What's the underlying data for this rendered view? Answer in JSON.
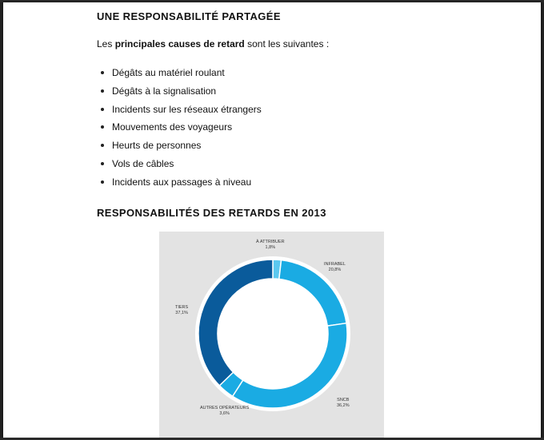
{
  "section1": {
    "title": "UNE RESPONSABILITÉ PARTAGÉE",
    "intro_before": "Les ",
    "intro_bold": "principales causes de retard",
    "intro_after": " sont les suivantes :",
    "bullets": [
      "Dégâts au matériel roulant",
      "Dégâts à la signalisation",
      "Incidents sur les réseaux étrangers",
      "Mouvements des voyageurs",
      "Heurts de personnes",
      "Vols de câbles",
      "Incidents aux passages à niveau"
    ]
  },
  "section2": {
    "title": "RESPONSABILITÉS DES RETARDS EN 2013"
  },
  "chart_data": {
    "type": "pie",
    "style": "donut",
    "title": "RESPONSABILITÉS DES RETARDS EN 2013",
    "slices": [
      {
        "label": "À ATTRIBUER",
        "value": 1.8,
        "value_label": "1,8%",
        "color": "#5bc8ef"
      },
      {
        "label": "INFRABEL",
        "value": 20.8,
        "value_label": "20,8%",
        "color": "#1aabe3"
      },
      {
        "label": "SNCB",
        "value": 36.2,
        "value_label": "36,2%",
        "color": "#1aabe3"
      },
      {
        "label": "AUTRES OPÉRATEURS",
        "value": 3.6,
        "value_label": "3,6%",
        "color": "#1aabe3"
      },
      {
        "label": "TIERS",
        "value": 37.1,
        "value_label": "37,1%",
        "color": "#0a5b9b"
      }
    ]
  }
}
